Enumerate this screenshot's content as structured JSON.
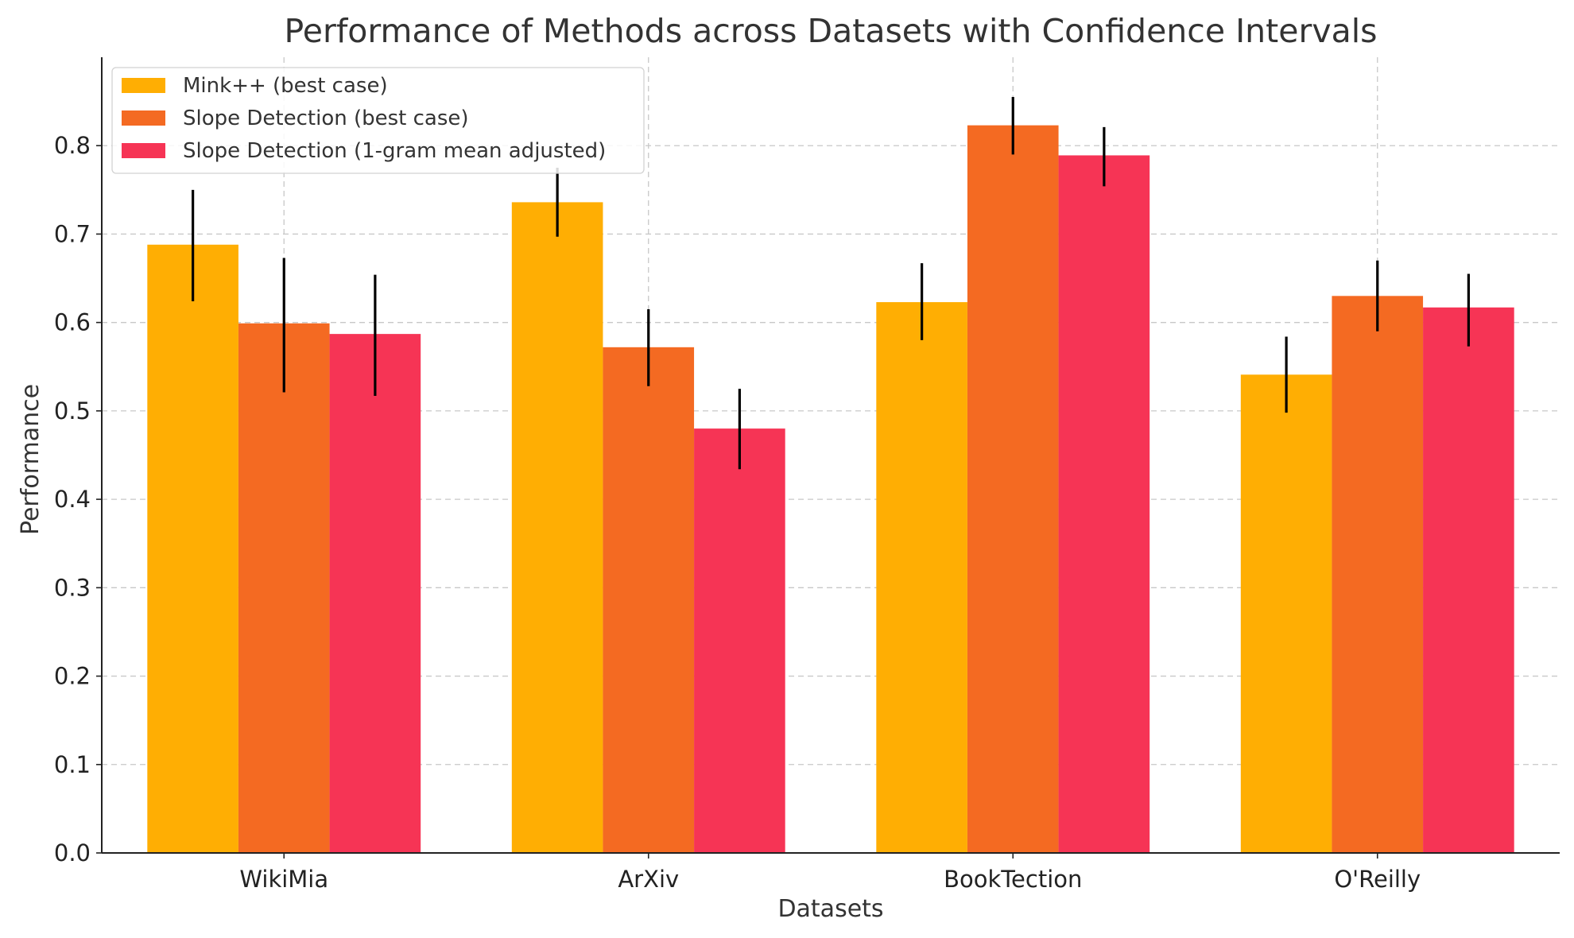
{
  "chart_data": {
    "type": "bar",
    "title": "Performance of Methods across Datasets with Confidence Intervals",
    "xlabel": "Datasets",
    "ylabel": "Performance",
    "categories": [
      "WikiMia",
      "ArXiv",
      "BookTection",
      "O'Reilly"
    ],
    "ylim": [
      0,
      0.9
    ],
    "yticks": [
      0.0,
      0.1,
      0.2,
      0.3,
      0.4,
      0.5,
      0.6,
      0.7,
      0.8
    ],
    "ytick_labels": [
      "0.0",
      "0.1",
      "0.2",
      "0.3",
      "0.4",
      "0.5",
      "0.6",
      "0.7",
      "0.8"
    ],
    "grid": true,
    "legend_position": "top-left",
    "series": [
      {
        "name": "Mink++ (best case)",
        "color": "#FFAE03",
        "values": [
          0.688,
          0.736,
          0.623,
          0.541
        ],
        "ci_low": [
          0.624,
          0.697,
          0.58,
          0.498
        ],
        "ci_high": [
          0.75,
          0.775,
          0.667,
          0.584
        ]
      },
      {
        "name": "Slope Detection (best case)",
        "color": "#F46A22",
        "values": [
          0.599,
          0.572,
          0.823,
          0.63
        ],
        "ci_low": [
          0.521,
          0.528,
          0.79,
          0.59
        ],
        "ci_high": [
          0.673,
          0.615,
          0.855,
          0.67
        ]
      },
      {
        "name": "Slope Detection (1-gram mean adjusted)",
        "color": "#F63455",
        "values": [
          0.587,
          0.48,
          0.789,
          0.617
        ],
        "ci_low": [
          0.517,
          0.434,
          0.754,
          0.573
        ],
        "ci_high": [
          0.654,
          0.525,
          0.821,
          0.655
        ]
      }
    ]
  }
}
